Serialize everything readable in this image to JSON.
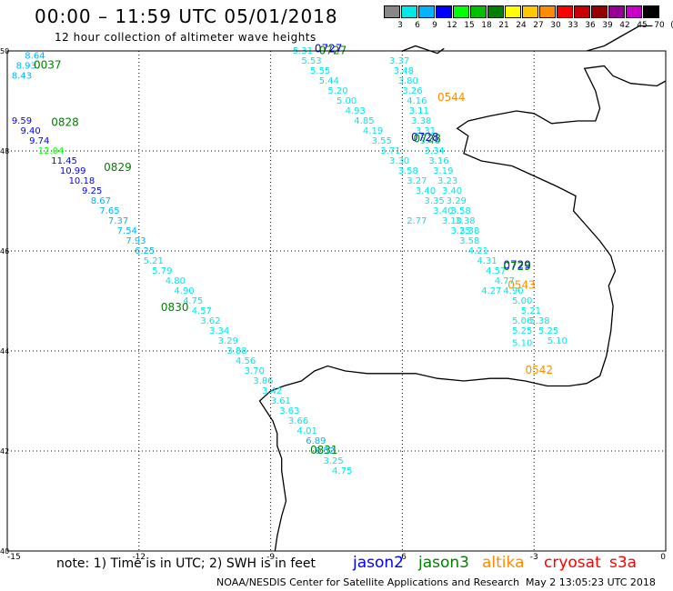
{
  "title": "00:00 – 11:59 UTC 05/01/2018",
  "subtitle": "12 hour collection of altimeter wave heights",
  "legend": {
    "labels": [
      "3",
      "6",
      "9",
      "12",
      "15",
      "18",
      "21",
      "24",
      "27",
      "30",
      "33",
      "36",
      "39",
      "42",
      "45",
      "70",
      "(ft)"
    ],
    "colors": [
      "#888888",
      "#00e8e8",
      "#00b4ff",
      "#0000ff",
      "#00ff00",
      "#00c000",
      "#008000",
      "#ffff00",
      "#ffc800",
      "#ff8c00",
      "#ff0000",
      "#c80000",
      "#960000",
      "#960096",
      "#c800c8",
      "#000000"
    ]
  },
  "axes": {
    "lon_labels": [
      "-15",
      "-12",
      "-9",
      "-6",
      "-3",
      "0"
    ],
    "lat_labels": [
      "50",
      "48",
      "46",
      "44",
      "42",
      "40"
    ]
  },
  "footer": {
    "note": "note:  1) Time is in UTC;  2) SWH is in feet",
    "satellites": [
      {
        "name": "jason2",
        "color": "#0000ff"
      },
      {
        "name": "jason3",
        "color": "#008000"
      },
      {
        "name": "altika",
        "color": "#ff8c00"
      },
      {
        "name": "cryosat",
        "color": "#ff0000"
      },
      {
        "name": "s3a",
        "color": "#ff0000"
      }
    ],
    "credit": "NOAA/NESDIS Center for Satellite Applications and Research",
    "timestamp": "May  2 13:05:23 UTC 2018"
  },
  "map": {
    "pass_times": [
      {
        "t": "0037",
        "lon": -14.4,
        "lat": 49.65,
        "color": "#008000"
      },
      {
        "t": "0828",
        "lon": -14.0,
        "lat": 48.5,
        "color": "#008000"
      },
      {
        "t": "0829",
        "lon": -12.8,
        "lat": 47.6,
        "color": "#008000"
      },
      {
        "t": "0830",
        "lon": -11.5,
        "lat": 44.8,
        "color": "#008000"
      },
      {
        "t": "0831",
        "lon": -8.1,
        "lat": 41.95,
        "color": "#008000"
      },
      {
        "t": "0727",
        "lon": -8.0,
        "lat": 49.97,
        "color": "#0000ff"
      },
      {
        "t": "0727",
        "lon": -7.9,
        "lat": 49.94,
        "color": "#008000"
      },
      {
        "t": "0728",
        "lon": -5.8,
        "lat": 48.2,
        "color": "#0000ff"
      },
      {
        "t": "0728",
        "lon": -5.75,
        "lat": 48.17,
        "color": "#008000"
      },
      {
        "t": "0729",
        "lon": -3.7,
        "lat": 45.65,
        "color": "#0000ff"
      },
      {
        "t": "0729",
        "lon": -3.7,
        "lat": 45.62,
        "color": "#008000"
      },
      {
        "t": "0544",
        "lon": -5.2,
        "lat": 49.0,
        "color": "#ff8c00"
      },
      {
        "t": "0543",
        "lon": -3.6,
        "lat": 45.25,
        "color": "#ff8c00"
      },
      {
        "t": "0542",
        "lon": -3.2,
        "lat": 43.55,
        "color": "#ff8c00"
      }
    ],
    "tracks": [
      {
        "name": "jason3-west",
        "points": [
          {
            "v": "8.64",
            "lon": -14.6,
            "lat": 49.85
          },
          {
            "v": "8.93",
            "lon": -14.8,
            "lat": 49.65
          },
          {
            "v": "8.43",
            "lon": -14.9,
            "lat": 49.45
          },
          {
            "v": "9.59",
            "lon": -14.9,
            "lat": 48.55
          },
          {
            "v": "9.40",
            "lon": -14.7,
            "lat": 48.35
          },
          {
            "v": "9.74",
            "lon": -14.5,
            "lat": 48.15
          },
          {
            "v": "12.04",
            "lon": -14.3,
            "lat": 47.95
          },
          {
            "v": "11.45",
            "lon": -14.0,
            "lat": 47.75
          },
          {
            "v": "10.99",
            "lon": -13.8,
            "lat": 47.55
          },
          {
            "v": "10.18",
            "lon": -13.6,
            "lat": 47.35
          },
          {
            "v": "9.25",
            "lon": -13.3,
            "lat": 47.15
          },
          {
            "v": "8.67",
            "lon": -13.1,
            "lat": 46.95
          },
          {
            "v": "7.65",
            "lon": -12.9,
            "lat": 46.75
          },
          {
            "v": "7.37",
            "lon": -12.7,
            "lat": 46.55
          },
          {
            "v": "7.54",
            "lon": -12.5,
            "lat": 46.35
          },
          {
            "v": "7.93",
            "lon": -12.3,
            "lat": 46.15
          },
          {
            "v": "6.25",
            "lon": -12.1,
            "lat": 45.95
          },
          {
            "v": "5.21",
            "lon": -11.9,
            "lat": 45.75
          },
          {
            "v": "5.79",
            "lon": -11.7,
            "lat": 45.55
          },
          {
            "v": "4.80",
            "lon": -11.4,
            "lat": 45.35
          },
          {
            "v": "4.90",
            "lon": -11.2,
            "lat": 45.15
          },
          {
            "v": "4.75",
            "lon": -11.0,
            "lat": 44.95
          },
          {
            "v": "4.57",
            "lon": -10.8,
            "lat": 44.75
          },
          {
            "v": "3.62",
            "lon": -10.6,
            "lat": 44.55
          },
          {
            "v": "3.34",
            "lon": -10.4,
            "lat": 44.35
          },
          {
            "v": "3.29",
            "lon": -10.2,
            "lat": 44.15
          },
          {
            "v": "3.88",
            "lon": -10.0,
            "lat": 43.95
          },
          {
            "v": "4.56",
            "lon": -9.8,
            "lat": 43.75
          },
          {
            "v": "3.70",
            "lon": -9.6,
            "lat": 43.55
          },
          {
            "v": "3.86",
            "lon": -9.4,
            "lat": 43.35
          },
          {
            "v": "3.42",
            "lon": -9.2,
            "lat": 43.15
          },
          {
            "v": "3.61",
            "lon": -9.0,
            "lat": 42.95
          },
          {
            "v": "3.63",
            "lon": -8.8,
            "lat": 42.75
          },
          {
            "v": "3.66",
            "lon": -8.6,
            "lat": 42.55
          },
          {
            "v": "4.01",
            "lon": -8.4,
            "lat": 42.35
          },
          {
            "v": "6.89",
            "lon": -8.2,
            "lat": 42.15
          },
          {
            "v": "6.52",
            "lon": -8.0,
            "lat": 41.95
          },
          {
            "v": "3.25",
            "lon": -7.8,
            "lat": 41.75
          },
          {
            "v": "4.75",
            "lon": -7.6,
            "lat": 41.55
          }
        ]
      },
      {
        "name": "jason-mid",
        "points": [
          {
            "v": "5.31",
            "lon": -8.5,
            "lat": 49.95
          },
          {
            "v": "5.53",
            "lon": -8.3,
            "lat": 49.75
          },
          {
            "v": "5.55",
            "lon": -8.1,
            "lat": 49.55
          },
          {
            "v": "5.44",
            "lon": -7.9,
            "lat": 49.35
          },
          {
            "v": "5.20",
            "lon": -7.7,
            "lat": 49.15
          },
          {
            "v": "5.00",
            "lon": -7.5,
            "lat": 48.95
          },
          {
            "v": "4.93",
            "lon": -7.3,
            "lat": 48.75
          },
          {
            "v": "4.85",
            "lon": -7.1,
            "lat": 48.55
          },
          {
            "v": "4.19",
            "lon": -6.9,
            "lat": 48.35
          },
          {
            "v": "3.55",
            "lon": -6.7,
            "lat": 48.15
          },
          {
            "v": "3.71",
            "lon": -6.5,
            "lat": 47.95
          },
          {
            "v": "3.30",
            "lon": -6.3,
            "lat": 47.75
          },
          {
            "v": "3.58",
            "lon": -6.1,
            "lat": 47.55
          },
          {
            "v": "3.27",
            "lon": -5.9,
            "lat": 47.35
          },
          {
            "v": "3.40",
            "lon": -5.7,
            "lat": 47.15
          },
          {
            "v": "3.35",
            "lon": -5.5,
            "lat": 46.95
          },
          {
            "v": "3.40",
            "lon": -5.3,
            "lat": 46.75
          },
          {
            "v": "3.10",
            "lon": -5.1,
            "lat": 46.55
          },
          {
            "v": "3.25",
            "lon": -4.9,
            "lat": 46.35
          },
          {
            "v": "3.58",
            "lon": -4.7,
            "lat": 46.15
          },
          {
            "v": "4.21",
            "lon": -4.5,
            "lat": 45.95
          },
          {
            "v": "4.31",
            "lon": -4.3,
            "lat": 45.75
          },
          {
            "v": "4.57",
            "lon": -4.1,
            "lat": 45.55
          },
          {
            "v": "4.77",
            "lon": -3.9,
            "lat": 45.35
          },
          {
            "v": "4.90",
            "lon": -3.7,
            "lat": 45.15
          },
          {
            "v": "5.00",
            "lon": -3.5,
            "lat": 44.95
          },
          {
            "v": "5.21",
            "lon": -3.3,
            "lat": 44.75
          },
          {
            "v": "5.38",
            "lon": -3.1,
            "lat": 44.55
          },
          {
            "v": "5.25",
            "lon": -2.9,
            "lat": 44.35
          },
          {
            "v": "5.10",
            "lon": -2.7,
            "lat": 44.15
          }
        ]
      },
      {
        "name": "altika",
        "points": [
          {
            "v": "3.37",
            "lon": -6.3,
            "lat": 49.75
          },
          {
            "v": "3.48",
            "lon": -6.2,
            "lat": 49.55
          },
          {
            "v": "3.80",
            "lon": -6.1,
            "lat": 49.35
          },
          {
            "v": "3.26",
            "lon": -6.0,
            "lat": 49.15
          },
          {
            "v": "4.16",
            "lon": -5.9,
            "lat": 48.95
          },
          {
            "v": "3.11",
            "lon": -5.85,
            "lat": 48.75
          },
          {
            "v": "3.38",
            "lon": -5.8,
            "lat": 48.55
          },
          {
            "v": "3.31",
            "lon": -5.7,
            "lat": 48.35
          },
          {
            "v": "3.46",
            "lon": -5.6,
            "lat": 48.15
          },
          {
            "v": "3.34",
            "lon": -5.5,
            "lat": 47.95
          },
          {
            "v": "3.16",
            "lon": -5.4,
            "lat": 47.75
          },
          {
            "v": "3.19",
            "lon": -5.3,
            "lat": 47.55
          },
          {
            "v": "3.23",
            "lon": -5.2,
            "lat": 47.35
          },
          {
            "v": "3.40",
            "lon": -5.1,
            "lat": 47.15
          },
          {
            "v": "2.77",
            "lon": -5.9,
            "lat": 46.55
          },
          {
            "v": "3.29",
            "lon": -5.0,
            "lat": 46.95
          },
          {
            "v": "3.58",
            "lon": -4.9,
            "lat": 46.75
          },
          {
            "v": "3.38",
            "lon": -4.8,
            "lat": 46.55
          },
          {
            "v": "3.38",
            "lon": -4.7,
            "lat": 46.35
          },
          {
            "v": "4.27",
            "lon": -4.2,
            "lat": 45.15
          },
          {
            "v": "5.06",
            "lon": -3.5,
            "lat": 44.55
          },
          {
            "v": "5.25",
            "lon": -3.5,
            "lat": 44.35
          },
          {
            "v": "5.10",
            "lon": -3.5,
            "lat": 44.1
          }
        ]
      }
    ],
    "coast": [
      [
        [
          -9.0,
          43.2
        ],
        [
          -8.7,
          43.3
        ],
        [
          -8.3,
          43.4
        ],
        [
          -8.0,
          43.6
        ],
        [
          -7.7,
          43.7
        ],
        [
          -7.3,
          43.6
        ],
        [
          -6.8,
          43.55
        ],
        [
          -6.2,
          43.55
        ],
        [
          -5.7,
          43.55
        ],
        [
          -5.2,
          43.45
        ],
        [
          -4.6,
          43.4
        ],
        [
          -4.0,
          43.45
        ],
        [
          -3.6,
          43.45
        ],
        [
          -3.2,
          43.4
        ],
        [
          -2.7,
          43.3
        ],
        [
          -2.2,
          43.3
        ],
        [
          -1.8,
          43.35
        ],
        [
          -1.5,
          43.5
        ],
        [
          -1.35,
          43.9
        ],
        [
          -1.25,
          44.4
        ],
        [
          -1.2,
          44.9
        ],
        [
          -1.3,
          45.3
        ],
        [
          -1.15,
          45.6
        ],
        [
          -1.25,
          45.9
        ],
        [
          -1.5,
          46.2
        ],
        [
          -1.8,
          46.5
        ],
        [
          -2.1,
          46.8
        ],
        [
          -2.05,
          47.1
        ],
        [
          -2.5,
          47.3
        ],
        [
          -3.0,
          47.5
        ],
        [
          -3.5,
          47.7
        ],
        [
          -4.2,
          47.8
        ],
        [
          -4.6,
          47.95
        ],
        [
          -4.5,
          48.3
        ],
        [
          -4.75,
          48.45
        ],
        [
          -4.5,
          48.6
        ],
        [
          -4.0,
          48.7
        ],
        [
          -3.4,
          48.8
        ],
        [
          -3.0,
          48.75
        ],
        [
          -2.6,
          48.55
        ],
        [
          -2.0,
          48.6
        ],
        [
          -1.6,
          48.6
        ],
        [
          -1.5,
          48.85
        ],
        [
          -1.6,
          49.2
        ],
        [
          -1.85,
          49.65
        ],
        [
          -1.4,
          49.7
        ],
        [
          -1.2,
          49.5
        ],
        [
          -0.8,
          49.35
        ],
        [
          -0.2,
          49.3
        ],
        [
          0.0,
          49.4
        ]
      ],
      [
        [
          -9.0,
          43.2
        ],
        [
          -9.25,
          43.0
        ],
        [
          -9.1,
          42.8
        ],
        [
          -8.95,
          42.6
        ],
        [
          -8.85,
          42.35
        ],
        [
          -8.85,
          42.1
        ],
        [
          -8.75,
          41.85
        ],
        [
          -8.75,
          41.6
        ],
        [
          -8.7,
          41.3
        ],
        [
          -8.65,
          41.0
        ],
        [
          -8.75,
          40.7
        ],
        [
          -8.85,
          40.3
        ],
        [
          -8.9,
          40.0
        ]
      ],
      [
        [
          -6.0,
          50.0
        ],
        [
          -5.7,
          50.1
        ],
        [
          -5.2,
          49.95
        ],
        [
          -5.05,
          50.05
        ]
      ],
      [
        [
          -1.8,
          50.0
        ],
        [
          -1.4,
          50.1
        ],
        [
          -1.0,
          50.3
        ],
        [
          -0.6,
          50.5
        ],
        [
          -0.3,
          50.5
        ]
      ]
    ]
  }
}
